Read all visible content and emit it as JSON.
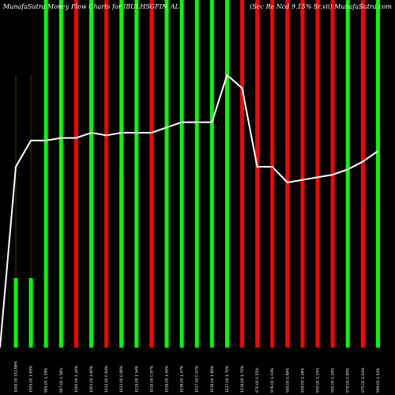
{
  "header": {
    "title_left": "MunafaSutra  Money Flow Charts for IBULHSGFIN_AL",
    "title_right": "(Sec Re  Ncd 9.15% Sr.vii) MunafaSutra.com"
  },
  "chart_data": {
    "type": "bar",
    "title": "MunafaSutra  Money Flow Charts for IBULHSGFIN_AL",
    "ylim": [
      0,
      100
    ],
    "colors": {
      "up": "#00ff00",
      "down": "#ff0000",
      "line": "#ffffff",
      "grid": "#b8860b",
      "bg": "#000000"
    },
    "categories": [
      "1000.00 151.68%",
      "1005.00 1.65%",
      "995.00 1.59%",
      "997.00 1.56%",
      "1000.00 2.24%",
      "1001.00 3.60%",
      "1012.00 0.64%",
      "1012.00 0.66%",
      "1015.00 1.54%",
      "1015.00 0.97%",
      "1016.00 1.45%",
      "1016.00 1.47%",
      "1017.00 0.57%",
      "1016.00 1.85%",
      "1017.00 1.70%",
      "1116.00 1.70%",
      "970.00 0.55%",
      "976.00 1.03%",
      "935.00 0.49%",
      "935.00 1.26%",
      "935.00 1.25%",
      "950.00 1.29%",
      "979.00 0.90%",
      "975.00 1.04%",
      "999.00 1.54%"
    ],
    "series": [
      {
        "values": [
          20,
          20,
          100,
          100,
          100,
          100,
          100,
          100,
          100,
          100,
          100,
          100,
          100,
          100,
          100,
          100,
          100,
          100,
          100,
          100,
          100,
          100,
          100,
          100,
          100
        ],
        "directions": [
          "up",
          "up",
          "up",
          "up",
          "down",
          "up",
          "down",
          "up",
          "up",
          "down",
          "up",
          "up",
          "up",
          "up",
          "up",
          "down",
          "down",
          "down",
          "down",
          "down",
          "down",
          "down",
          "up",
          "down",
          "up"
        ]
      },
      {
        "values": [
          20,
          20,
          100,
          100,
          100,
          100,
          100,
          50,
          100,
          10,
          100,
          100,
          100,
          100,
          100,
          100,
          100,
          100,
          100,
          100,
          30,
          100,
          100,
          40,
          60
        ]
      }
    ],
    "money_flow_line": [
      69,
      79,
      79,
      80,
      80,
      82,
      81,
      82,
      82,
      82,
      84,
      86,
      86,
      86,
      104,
      99,
      69,
      69,
      63,
      64,
      65,
      66,
      68,
      71,
      75
    ],
    "has_grid": true
  }
}
